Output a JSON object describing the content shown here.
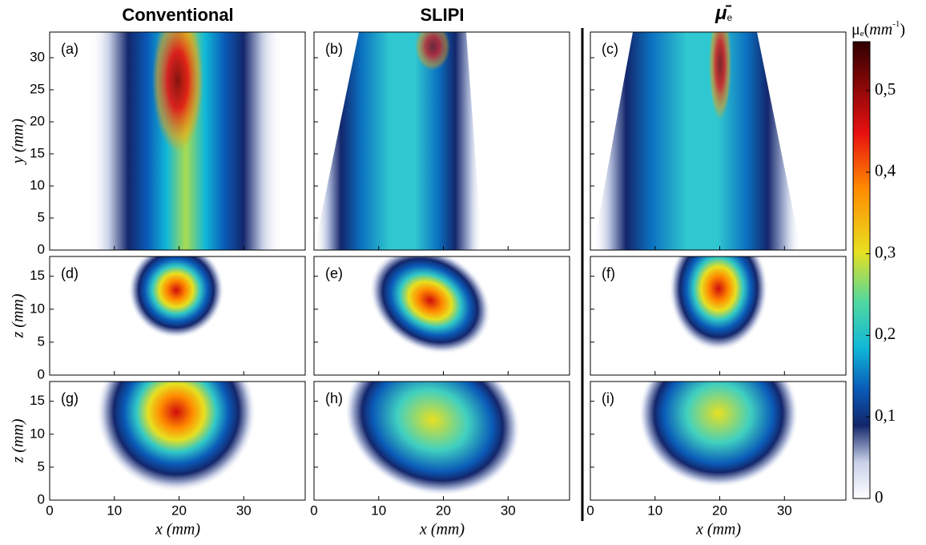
{
  "columns": [
    {
      "title": "Conventional"
    },
    {
      "title": "SLIPI"
    },
    {
      "title_symbol": "μ̄",
      "title_subscript": "e"
    }
  ],
  "panel_labels": [
    [
      "(a)",
      "(b)",
      "(c)"
    ],
    [
      "(d)",
      "(e)",
      "(f)"
    ],
    [
      "(g)",
      "(h)",
      "(i)"
    ]
  ],
  "x_axis": {
    "label": "x (mm)",
    "lim": [
      0,
      39.5
    ],
    "ticks": [
      0,
      10,
      20,
      30
    ]
  },
  "rows": [
    {
      "label": "y (mm)",
      "lim": [
        0,
        34
      ],
      "ticks": [
        0,
        5,
        10,
        15,
        20,
        25,
        30
      ]
    },
    {
      "label": "z (mm)",
      "lim": [
        0,
        18
      ],
      "ticks": [
        0,
        5,
        10,
        15
      ]
    },
    {
      "label": "z (mm)",
      "lim": [
        0,
        18
      ],
      "ticks": [
        0,
        5,
        10,
        15
      ]
    }
  ],
  "colorbar": {
    "symbol": "μ",
    "subscript": "e",
    "unit_open": "(",
    "unit": "mm",
    "exponent": "-1",
    "unit_close": ")",
    "lim": [
      0,
      0.56
    ],
    "ticks": [
      0,
      {
        "value": 0.1,
        "label": "0,1"
      },
      {
        "value": 0.2,
        "label": "0,2"
      },
      {
        "value": 0.3,
        "label": "0,3"
      },
      {
        "value": 0.4,
        "label": "0,4"
      },
      {
        "value": 0.5,
        "label": "0,5"
      }
    ]
  }
}
